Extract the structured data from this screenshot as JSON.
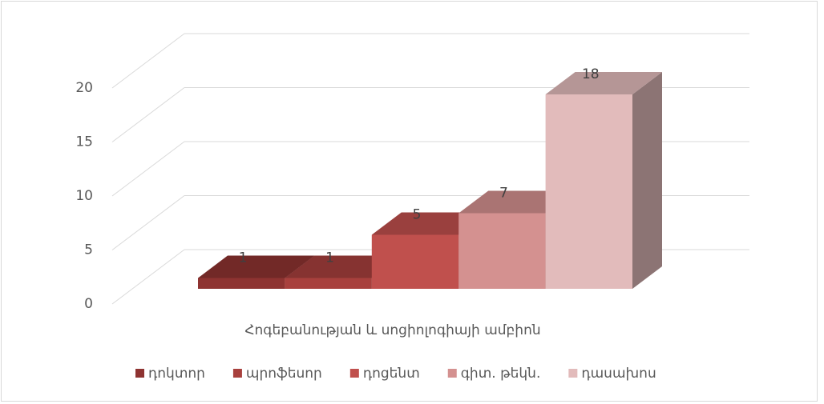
{
  "chart_data": {
    "type": "bar3d",
    "categories": [
      "Հոգեբանության և սոցիոլոգիայի ամբիոն"
    ],
    "series": [
      {
        "name": "դոկտոր",
        "color": "#8e3331",
        "values": [
          1
        ]
      },
      {
        "name": "պրոֆեսոր",
        "color": "#a8403d",
        "values": [
          1
        ]
      },
      {
        "name": "դոցենտ",
        "color": "#c0504d",
        "values": [
          5
        ]
      },
      {
        "name": "գիտ. թեկն.",
        "color": "#d49190",
        "values": [
          7
        ]
      },
      {
        "name": "դասախոս",
        "color": "#e2bbbb",
        "values": [
          18
        ]
      }
    ],
    "ylim": [
      0,
      20
    ],
    "yticks": [
      0,
      5,
      10,
      15,
      20
    ],
    "grid": true,
    "legend": "bottom"
  }
}
